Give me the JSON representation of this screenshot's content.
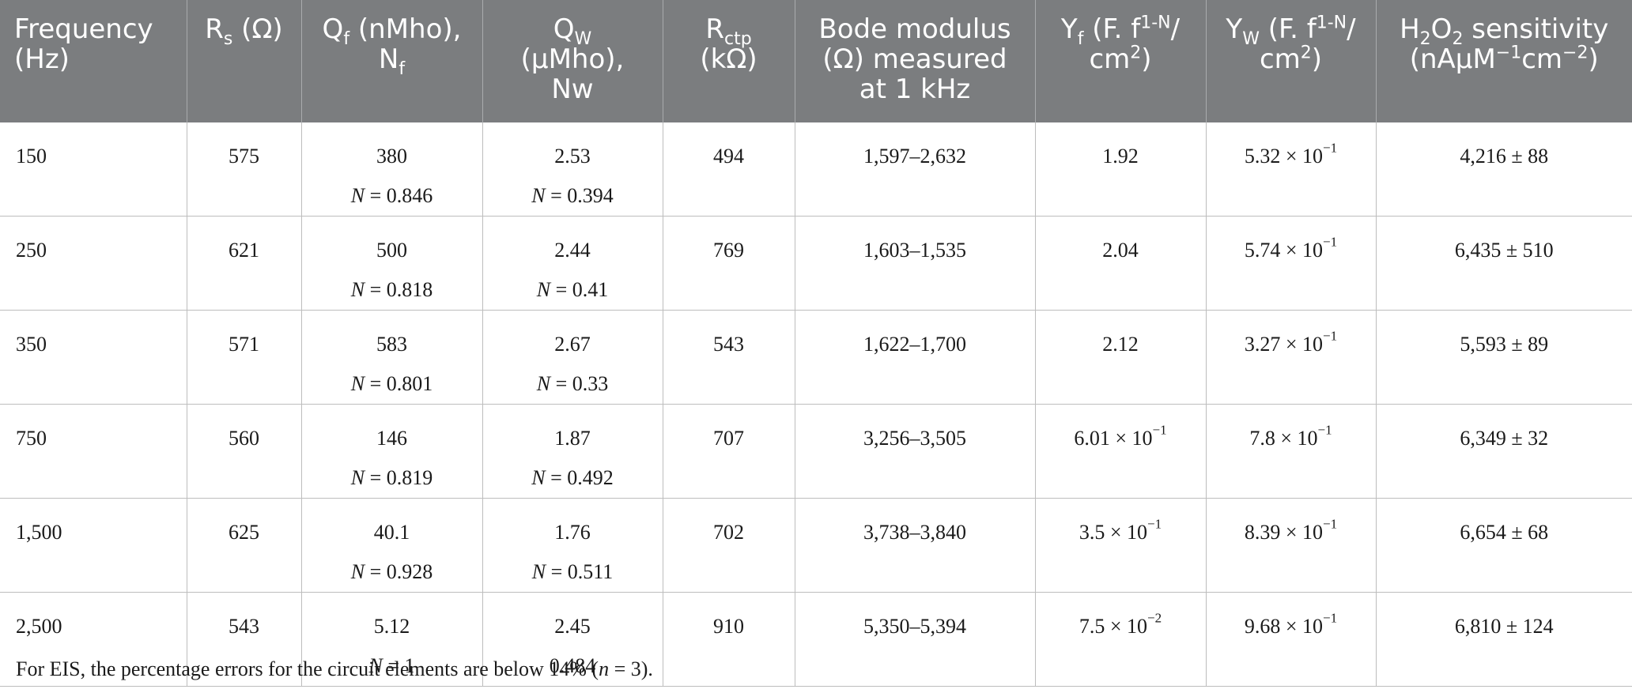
{
  "header": {
    "frequency": [
      "Frequency",
      "(Hz)"
    ],
    "rs": {
      "base": "R",
      "sub": "s",
      "unit": " (Ω)"
    },
    "qf": {
      "base": "Q",
      "sub": "f",
      "unit": " (nMho),",
      "n_base": "N",
      "n_sub": "f"
    },
    "qw": {
      "base": "Q",
      "sub": "W",
      "unit": "(μMho),",
      "n": "Nw"
    },
    "rctp": {
      "base": "R",
      "sub": "ctp",
      "unit": "(kΩ)"
    },
    "bode": [
      "Bode modulus",
      "(Ω) measured",
      "at 1 kHz"
    ],
    "yf": {
      "base": "Y",
      "sub": "f",
      "unit_pre": " (F. f",
      "sup": "1-N",
      "unit_post": "/",
      "line2": "cm",
      "line2_sup": "2",
      "line2_post": ")"
    },
    "yw": {
      "base": "Y",
      "sub": "W",
      "unit_pre": " (F. f",
      "sup": "1-N",
      "unit_post": "/",
      "line2": "cm",
      "line2_sup": "2",
      "line2_post": ")"
    },
    "h2o2": {
      "a": "H",
      "s1": "2",
      "b": "O",
      "s2": "2",
      "c": " sensitivity",
      "line2_a": "(nAμM",
      "line2_sup1": "−1",
      "line2_b": "cm",
      "line2_sup2": "−2",
      "line2_c": ")"
    }
  },
  "rows": [
    {
      "freq": "150",
      "rs": "575",
      "qf": "380",
      "nf_label": "N",
      "nf": " = 0.846",
      "qw": "2.53",
      "nw_label": "N",
      "nw": " = 0.394",
      "rctp": "494",
      "bode": "1,597–2,632",
      "yf": "1.92",
      "yf_exp": "",
      "yw": "5.32 × 10",
      "yw_exp": "−1",
      "h2o2": "4,216 ± 88"
    },
    {
      "freq": "250",
      "rs": "621",
      "qf": "500",
      "nf_label": "N",
      "nf": " = 0.818",
      "qw": "2.44",
      "nw_label": "N",
      "nw": " = 0.41",
      "rctp": "769",
      "bode": "1,603–1,535",
      "yf": "2.04",
      "yf_exp": "",
      "yw": "5.74 × 10",
      "yw_exp": "−1",
      "h2o2": "6,435 ± 510"
    },
    {
      "freq": "350",
      "rs": "571",
      "qf": "583",
      "nf_label": "N",
      "nf": " = 0.801",
      "qw": "2.67",
      "nw_label": "N",
      "nw": " = 0.33",
      "rctp": "543",
      "bode": "1,622–1,700",
      "yf": "2.12",
      "yf_exp": "",
      "yw": "3.27 × 10",
      "yw_exp": "−1",
      "h2o2": "5,593 ± 89"
    },
    {
      "freq": "750",
      "rs": "560",
      "qf": "146",
      "nf_label": "N",
      "nf": " = 0.819",
      "qw": "1.87",
      "nw_label": "N",
      "nw": " = 0.492",
      "rctp": "707",
      "bode": "3,256–3,505",
      "yf": "6.01 × 10",
      "yf_exp": "−1",
      "yw": "7.8 × 10",
      "yw_exp": "−1",
      "h2o2": "6,349 ± 32"
    },
    {
      "freq": "1,500",
      "rs": "625",
      "qf": "40.1",
      "nf_label": "N",
      "nf": " = 0.928",
      "qw": "1.76",
      "nw_label": "N",
      "nw": " = 0.511",
      "rctp": "702",
      "bode": "3,738–3,840",
      "yf": "3.5 × 10",
      "yf_exp": "−1",
      "yw": "8.39 × 10",
      "yw_exp": "−1",
      "h2o2": "6,654 ± 68"
    },
    {
      "freq": "2,500",
      "rs": "543",
      "qf": "5.12",
      "nf_label": "N",
      "nf": " = 1",
      "qw": "2.45",
      "nw_label": "",
      "nw": "0.484",
      "rctp": "910",
      "bode": "5,350–5,394",
      "yf": "7.5 × 10",
      "yf_exp": "−2",
      "yw": "9.68 × 10",
      "yw_exp": "−1",
      "h2o2": "6,810 ± 124"
    }
  ],
  "footnote": {
    "before": "For EIS, the percentage errors for the circuit elements are below 14% (",
    "n": "n",
    "after": " = 3)."
  }
}
